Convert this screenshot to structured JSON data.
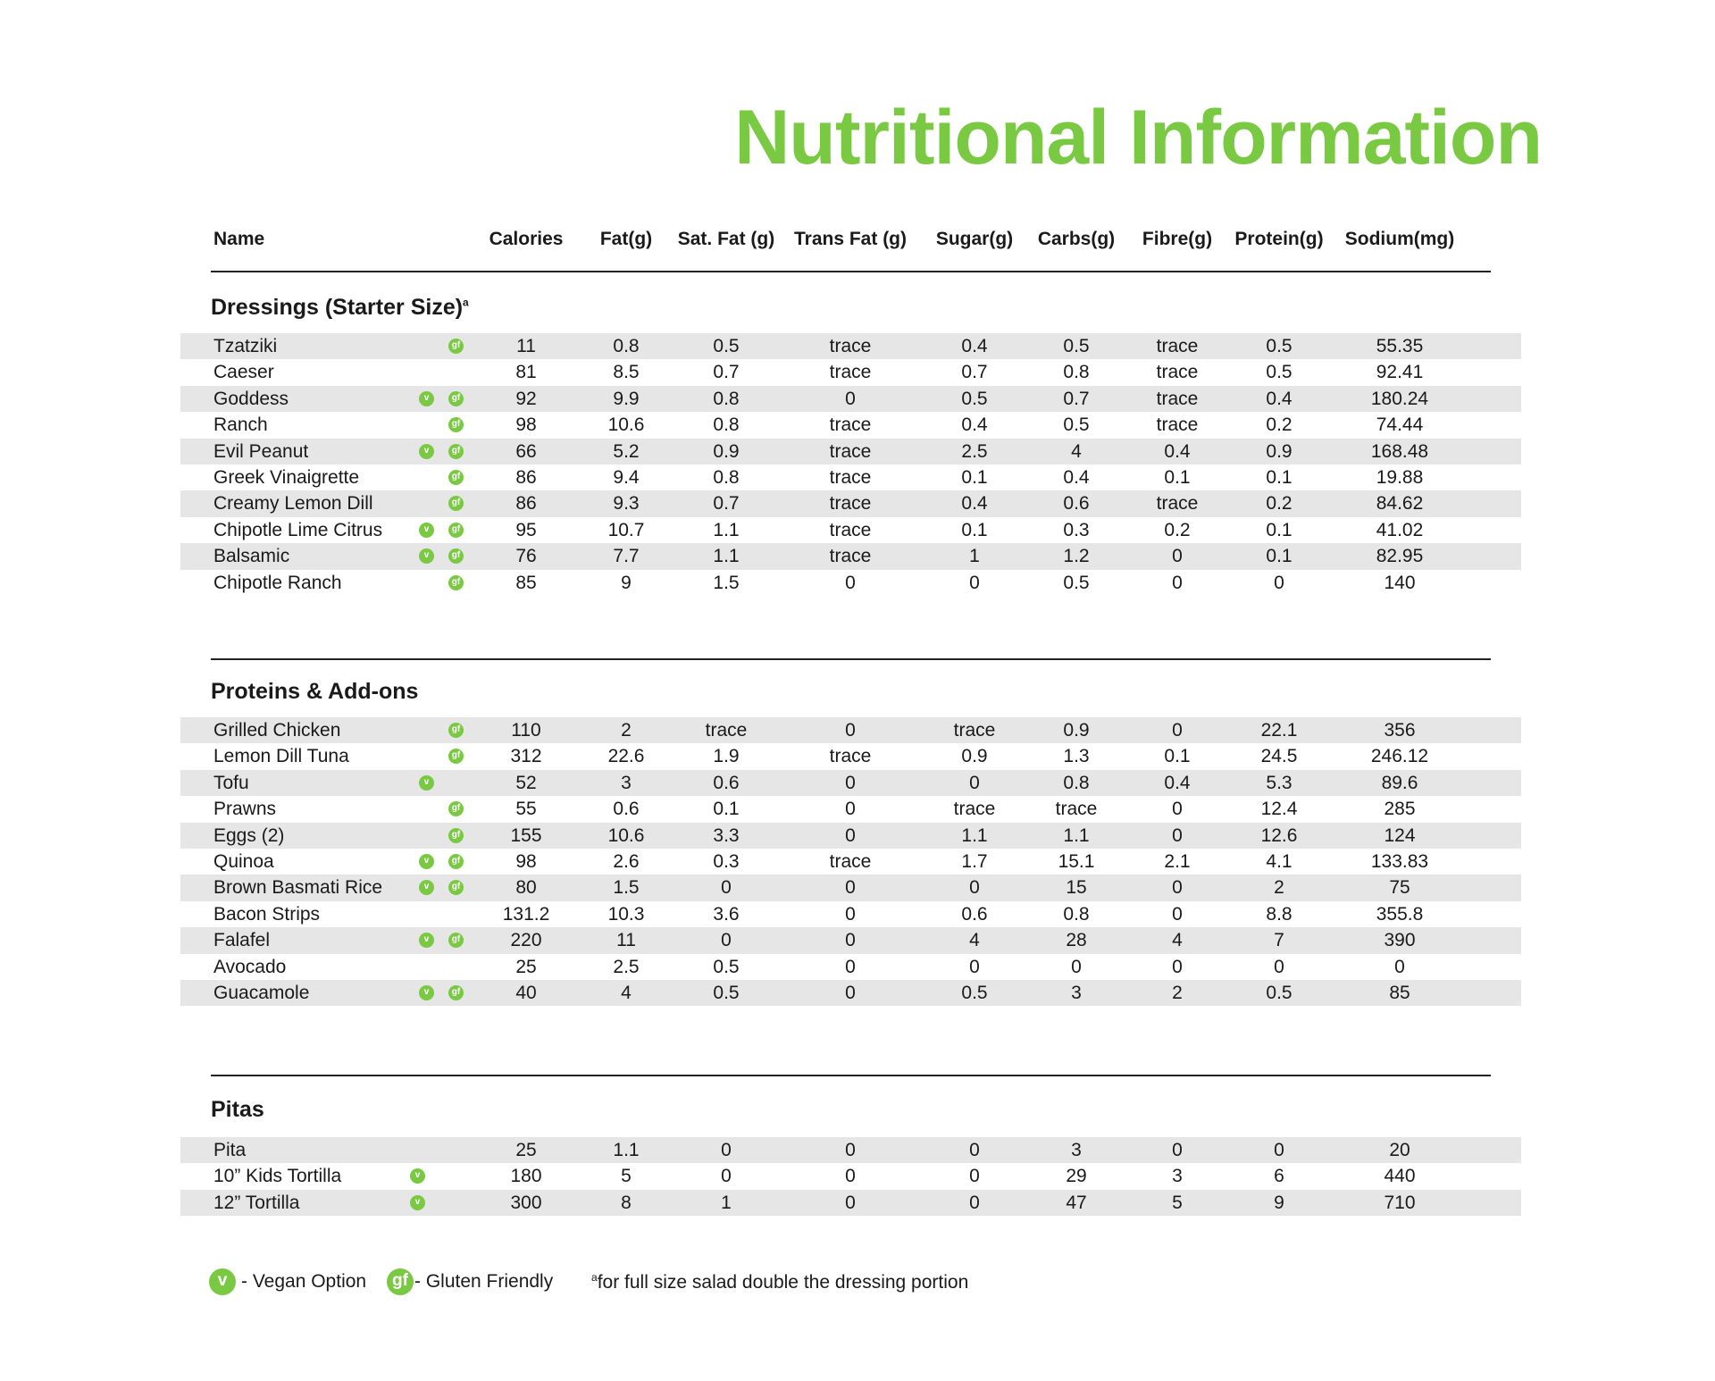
{
  "title": "Nutritional Information",
  "columns": [
    "Name",
    "Calories",
    "Fat(g)",
    "Sat. Fat (g)",
    "Trans Fat (g)",
    "Sugar(g)",
    "Carbs(g)",
    "Fibre(g)",
    "Protein(g)",
    "Sodium(mg)"
  ],
  "colors": {
    "accent": "#7ac943",
    "row_shade": "#e6e6e6"
  },
  "badges": {
    "vegan": "v",
    "gluten": "gf"
  },
  "sections": [
    {
      "title": "Dressings (Starter Size)",
      "title_sup": "a",
      "rows": [
        {
          "name": "Tzatziki",
          "v": false,
          "gf": true,
          "vals": [
            "11",
            "0.8",
            "0.5",
            "trace",
            "0.4",
            "0.5",
            "trace",
            "0.5",
            "55.35"
          ]
        },
        {
          "name": "Caeser",
          "v": false,
          "gf": false,
          "vals": [
            "81",
            "8.5",
            "0.7",
            "trace",
            "0.7",
            "0.8",
            "trace",
            "0.5",
            "92.41"
          ]
        },
        {
          "name": "Goddess",
          "v": true,
          "gf": true,
          "vals": [
            "92",
            "9.9",
            "0.8",
            "0",
            "0.5",
            "0.7",
            "trace",
            "0.4",
            "180.24"
          ]
        },
        {
          "name": "Ranch",
          "v": false,
          "gf": true,
          "vals": [
            "98",
            "10.6",
            "0.8",
            "trace",
            "0.4",
            "0.5",
            "trace",
            "0.2",
            "74.44"
          ]
        },
        {
          "name": "Evil Peanut",
          "v": true,
          "gf": true,
          "vals": [
            "66",
            "5.2",
            "0.9",
            "trace",
            "2.5",
            "4",
            "0.4",
            "0.9",
            "168.48"
          ]
        },
        {
          "name": "Greek Vinaigrette",
          "v": false,
          "gf": true,
          "vals": [
            "86",
            "9.4",
            "0.8",
            "trace",
            "0.1",
            "0.4",
            "0.1",
            "0.1",
            "19.88"
          ]
        },
        {
          "name": "Creamy Lemon Dill",
          "v": false,
          "gf": true,
          "vals": [
            "86",
            "9.3",
            "0.7",
            "trace",
            "0.4",
            "0.6",
            "trace",
            "0.2",
            "84.62"
          ]
        },
        {
          "name": "Chipotle Lime Citrus",
          "v": true,
          "gf": true,
          "vals": [
            "95",
            "10.7",
            "1.1",
            "trace",
            "0.1",
            "0.3",
            "0.2",
            "0.1",
            "41.02"
          ]
        },
        {
          "name": "Balsamic",
          "v": true,
          "gf": true,
          "vals": [
            "76",
            "7.7",
            "1.1",
            "trace",
            "1",
            "1.2",
            "0",
            "0.1",
            "82.95"
          ]
        },
        {
          "name": "Chipotle Ranch",
          "v": false,
          "gf": true,
          "vals": [
            "85",
            "9",
            "1.5",
            "0",
            "0",
            "0.5",
            "0",
            "0",
            "140"
          ]
        }
      ]
    },
    {
      "title": "Proteins & Add-ons",
      "rows": [
        {
          "name": "Grilled Chicken",
          "v": false,
          "gf": true,
          "vals": [
            "110",
            "2",
            "trace",
            "0",
            "trace",
            "0.9",
            "0",
            "22.1",
            "356"
          ]
        },
        {
          "name": "Lemon Dill Tuna",
          "v": false,
          "gf": true,
          "vals": [
            "312",
            "22.6",
            "1.9",
            "trace",
            "0.9",
            "1.3",
            "0.1",
            "24.5",
            "246.12"
          ]
        },
        {
          "name": "Tofu",
          "v": true,
          "gf": false,
          "vals": [
            "52",
            "3",
            "0.6",
            "0",
            "0",
            "0.8",
            "0.4",
            "5.3",
            "89.6"
          ]
        },
        {
          "name": "Prawns",
          "v": false,
          "gf": true,
          "vals": [
            "55",
            "0.6",
            "0.1",
            "0",
            "trace",
            "trace",
            "0",
            "12.4",
            "285"
          ]
        },
        {
          "name": "Eggs (2)",
          "v": false,
          "gf": true,
          "vals": [
            "155",
            "10.6",
            "3.3",
            "0",
            "1.1",
            "1.1",
            "0",
            "12.6",
            "124"
          ]
        },
        {
          "name": "Quinoa",
          "v": true,
          "gf": true,
          "vals": [
            "98",
            "2.6",
            "0.3",
            "trace",
            "1.7",
            "15.1",
            "2.1",
            "4.1",
            "133.83"
          ]
        },
        {
          "name": "Brown Basmati Rice",
          "v": true,
          "gf": true,
          "vals": [
            "80",
            "1.5",
            "0",
            "0",
            "0",
            "15",
            "0",
            "2",
            "75"
          ]
        },
        {
          "name": "Bacon Strips",
          "v": false,
          "gf": false,
          "vals": [
            "131.2",
            "10.3",
            "3.6",
            "0",
            "0.6",
            "0.8",
            "0",
            "8.8",
            "355.8"
          ]
        },
        {
          "name": "Falafel",
          "v": true,
          "gf": true,
          "vals": [
            "220",
            "11",
            "0",
            "0",
            "4",
            "28",
            "4",
            "7",
            "390"
          ]
        },
        {
          "name": "Avocado",
          "v": false,
          "gf": false,
          "vals": [
            "25",
            "2.5",
            "0.5",
            "0",
            "0",
            "0",
            "0",
            "0",
            "0"
          ]
        },
        {
          "name": "Guacamole",
          "v": true,
          "gf": true,
          "vals": [
            "40",
            "4",
            "0.5",
            "0",
            "0.5",
            "3",
            "2",
            "0.5",
            "85"
          ]
        }
      ]
    },
    {
      "title": "Pitas",
      "rows": [
        {
          "name": "Pita",
          "v": false,
          "gf": false,
          "vals": [
            "25",
            "1.1",
            "0",
            "0",
            "0",
            "3",
            "0",
            "0",
            "20"
          ]
        },
        {
          "name": "10” Kids Tortilla",
          "v": true,
          "gf": false,
          "vals": [
            "180",
            "5",
            "0",
            "0",
            "0",
            "29",
            "3",
            "6",
            "440"
          ]
        },
        {
          "name": "12” Tortilla",
          "v": true,
          "gf": false,
          "vals": [
            "300",
            "8",
            "1",
            "0",
            "0",
            "47",
            "5",
            "9",
            "710"
          ]
        }
      ]
    }
  ],
  "footer": {
    "vegan_label": "- Vegan Option",
    "gluten_label": "- Gluten Friendly",
    "note_sup": "a",
    "note": "for full size salad double the dressing portion"
  }
}
